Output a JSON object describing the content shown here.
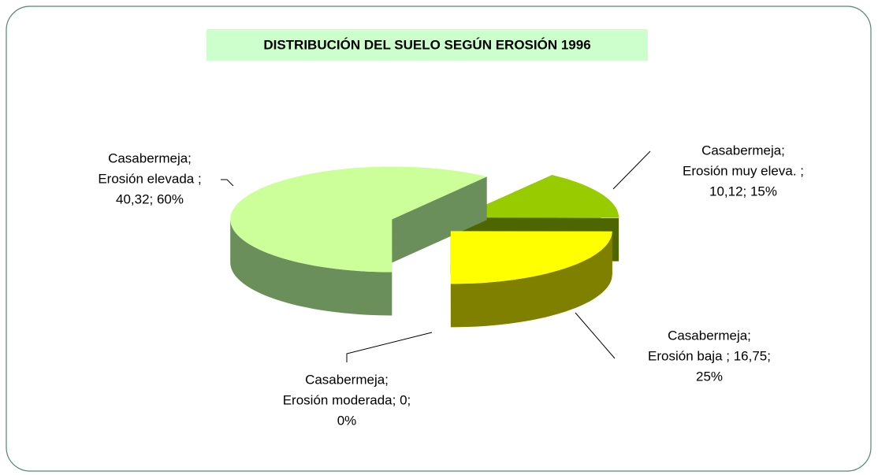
{
  "chart_data": {
    "type": "pie3d",
    "title": "DISTRIBUCIÓN DEL SUELO SEGÚN EROSIÓN 1996",
    "values": [
      10.12,
      16.75,
      0,
      40.32
    ],
    "value_labels": [
      [
        "Casabermeja;",
        "Erosión muy eleva. ;",
        "10,12; 15%"
      ],
      [
        "Casabermeja;",
        "Erosión baja ; 16,75;",
        "25%"
      ],
      [
        "Casabermeja;",
        "Erosión moderada; 0;",
        "0%"
      ],
      [
        "Casabermeja;",
        "Erosión elevada ;",
        "40,32; 60%"
      ]
    ],
    "colors": [
      "#99cc00",
      "#ffff00",
      "#3366ff",
      "#ccff99"
    ],
    "side_colors": [
      "#4d6600",
      "#808000",
      "#1a3380",
      "#6b8f5b"
    ]
  }
}
